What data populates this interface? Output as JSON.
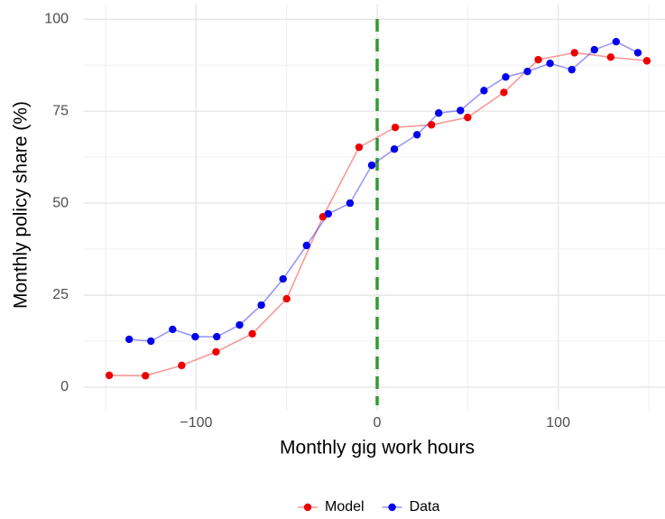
{
  "chart_data": {
    "type": "line",
    "xlabel": "Monthly gig work hours",
    "ylabel": "Monthly policy share (%)",
    "xlim": [
      -162,
      159
    ],
    "ylim": [
      -6.4,
      104
    ],
    "xticks": [
      {
        "value": -100,
        "label": "−100"
      },
      0,
      100
    ],
    "yticks": [
      0,
      25,
      50,
      75,
      100
    ],
    "xminorticks": [
      -150,
      -50,
      50,
      150
    ],
    "yminorticks": [
      12.5,
      37.5,
      62.5,
      87.5
    ],
    "grid": true,
    "vline": {
      "x": 0,
      "color": "#339933"
    },
    "legend": "bottom",
    "series": [
      {
        "name": "Model",
        "color": "#ee0000",
        "x": [
          -148,
          -128,
          -108,
          -89,
          -69,
          -50,
          -30,
          -10,
          10,
          30,
          50,
          70,
          89,
          109,
          129,
          149
        ],
        "values": [
          3.2,
          3.1,
          5.9,
          9.6,
          14.5,
          24.0,
          46.3,
          65.2,
          70.6,
          71.3,
          73.3,
          80.1,
          89.0,
          90.9,
          89.7,
          88.7
        ]
      },
      {
        "name": "Data",
        "color": "#0000ee",
        "x": [
          -137,
          -125,
          -113,
          -100.5,
          -88.6,
          -76,
          -64,
          -52,
          -39,
          -27,
          -15,
          -3,
          9.5,
          22,
          34,
          46,
          59,
          71,
          83,
          95.5,
          107.5,
          120,
          132,
          144
        ],
        "values": [
          13.0,
          12.5,
          15.7,
          13.7,
          13.7,
          16.9,
          22.3,
          29.4,
          38.5,
          47.1,
          50.0,
          60.3,
          64.7,
          68.6,
          74.5,
          75.2,
          80.6,
          84.3,
          85.8,
          88.0,
          86.3,
          91.7,
          93.9,
          90.9
        ]
      }
    ]
  }
}
